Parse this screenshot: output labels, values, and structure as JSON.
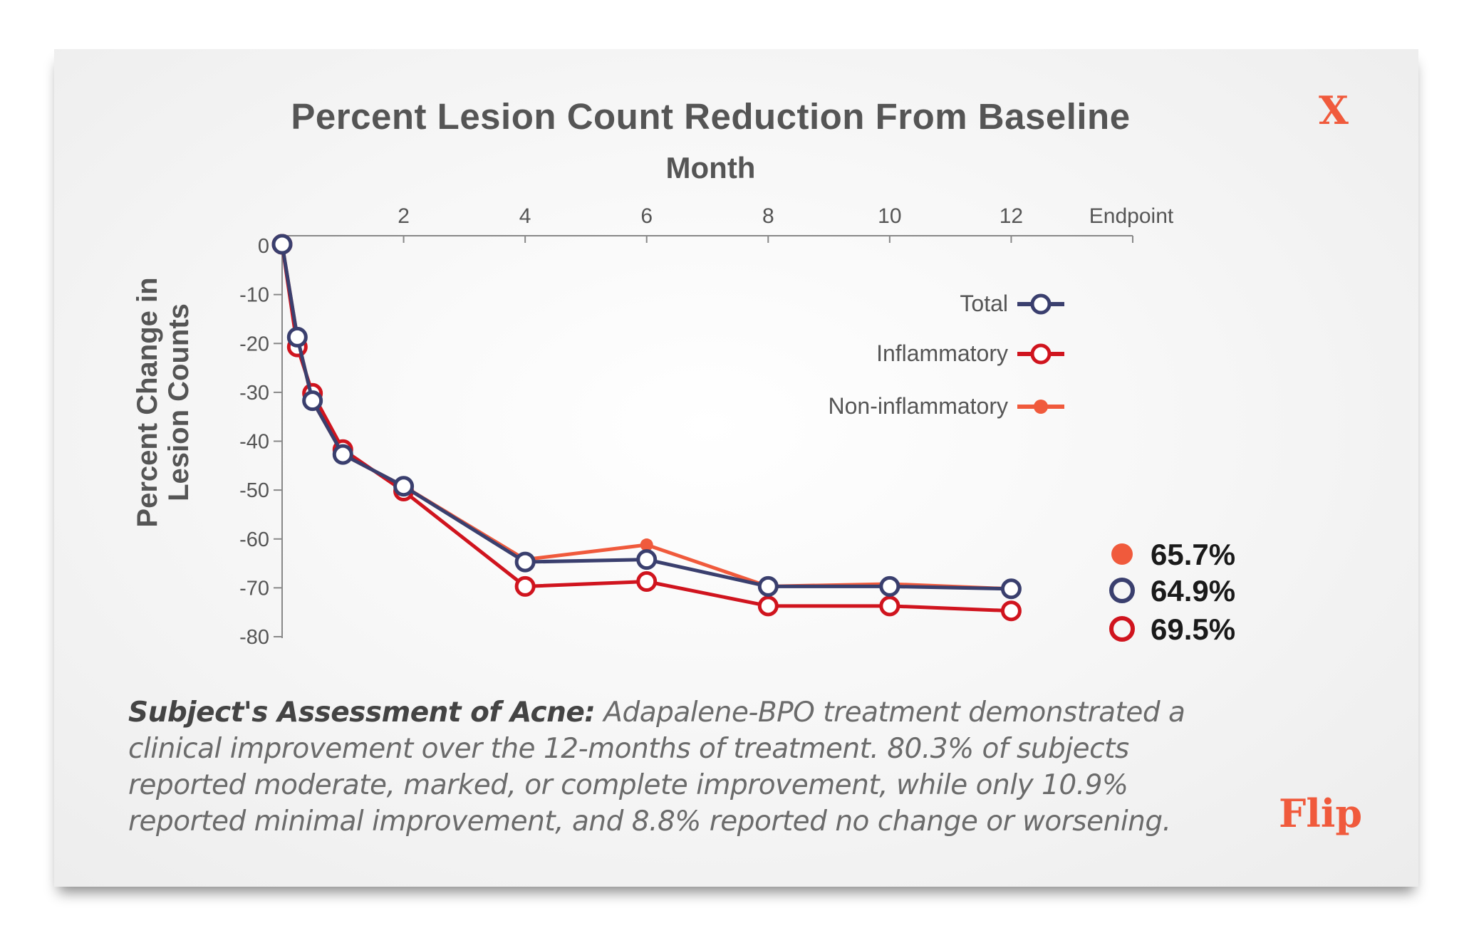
{
  "page": {
    "close_label": "X",
    "brand_label": "Flip"
  },
  "chart_data": {
    "type": "line",
    "title": "Percent Lesion Count Reduction From Baseline",
    "xlabel": "Month",
    "ylabel_lines": [
      "Percent Change in",
      "Lesion Counts"
    ],
    "x_ticks": [
      "2",
      "4",
      "6",
      "8",
      "10",
      "12",
      "Endpoint"
    ],
    "y_ticks": [
      "0",
      "-10",
      "-20",
      "-30",
      "-40",
      "-50",
      "-60",
      "-70",
      "-80"
    ],
    "xlim": [
      0,
      14
    ],
    "ylim": [
      -80,
      0
    ],
    "grid": false,
    "legend_position": "top-right",
    "x": [
      0,
      0.25,
      0.5,
      1,
      2,
      4,
      6,
      8,
      10,
      12
    ],
    "series": [
      {
        "name": "Total",
        "color": "#3a3f6e",
        "marker": "open-circle",
        "values": [
          0,
          -19,
          -32,
          -43,
          -49.5,
          -65,
          -64.5,
          -70,
          -70,
          -70.5
        ]
      },
      {
        "name": "Inflammatory",
        "color": "#d0141e",
        "marker": "open-circle",
        "values": [
          0,
          -21,
          -30.5,
          -42,
          -50.5,
          -70,
          -69,
          -74,
          -74,
          -75
        ]
      },
      {
        "name": "Non-inflammatory",
        "color": "#f05a3c",
        "marker": "filled-circle",
        "values": [
          0,
          -19,
          -32,
          -43,
          -49.5,
          -64.5,
          -61.5,
          -70,
          -69.5,
          -70.5
        ]
      }
    ],
    "endpoint_labels": [
      {
        "series": "Non-inflammatory",
        "value": "65.7%",
        "color": "#f05a3c",
        "marker": "filled-circle"
      },
      {
        "series": "Total",
        "value": "64.9%",
        "color": "#3a3f6e",
        "marker": "open-circle"
      },
      {
        "series": "Inflammatory",
        "value": "69.5%",
        "color": "#d0141e",
        "marker": "open-circle"
      }
    ]
  },
  "caption": {
    "lead": "Subject's Assessment of Acne:",
    "text": " Adapalene-BPO treatment demonstrated a clinical improvement over the 12-months of treatment. 80.3% of subjects reported moderate, marked, or complete improvement, while only 10.9% reported minimal improvement, and 8.8% reported no change or worsening."
  }
}
